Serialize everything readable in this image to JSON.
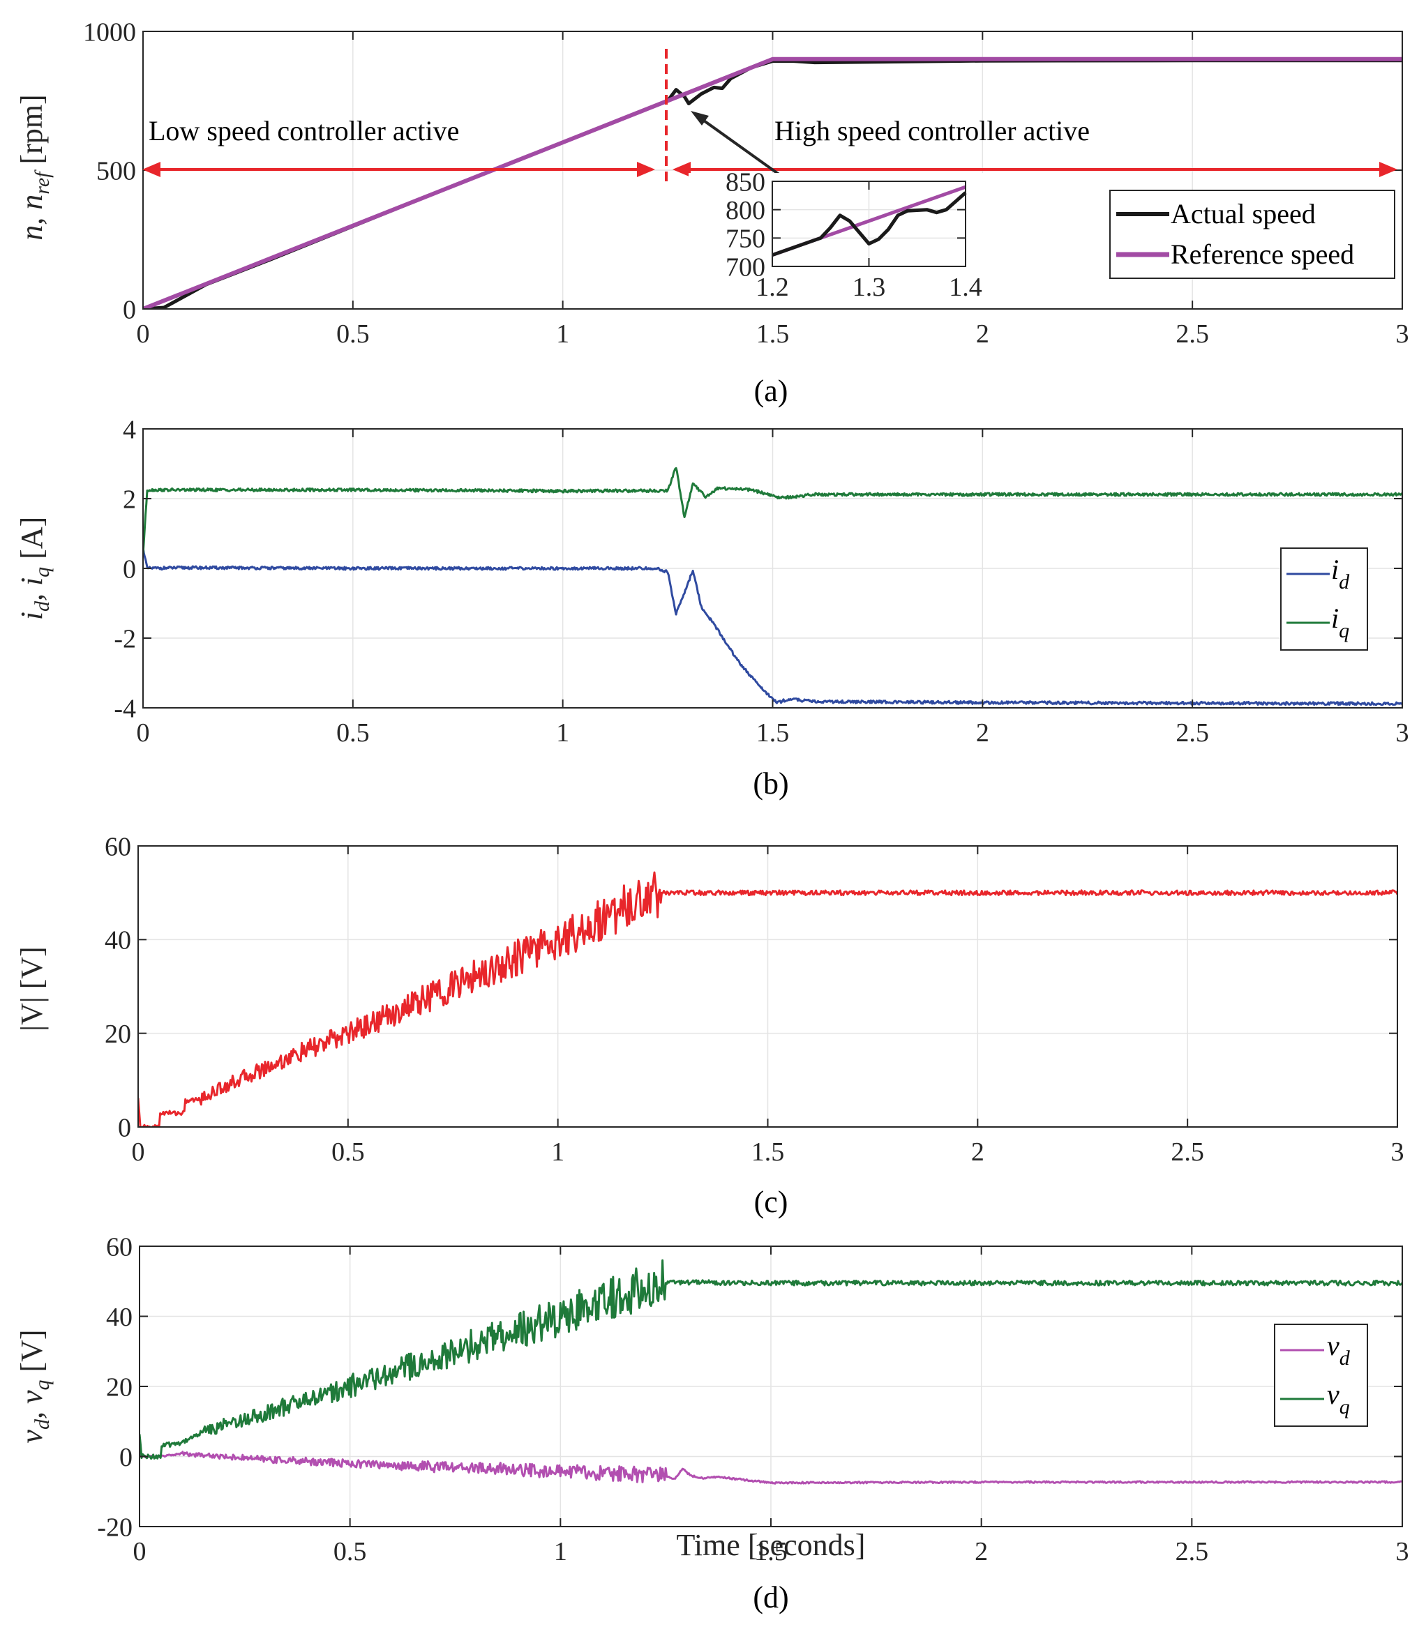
{
  "chart_data": [
    {
      "type": "line",
      "panel": "a",
      "caption": "(a)",
      "ylabel": "n, n_ref [rpm]",
      "ylabel_text": "n, n",
      "ylabel_sub": "ref",
      "ylabel_unit": " [rpm]",
      "xlim": [
        0,
        3
      ],
      "ylim": [
        0,
        1000
      ],
      "xticks": [
        "0",
        "0.5",
        "1",
        "1.5",
        "2",
        "2.5",
        "3"
      ],
      "yticks": [
        "0",
        "500",
        "1000"
      ],
      "grid": true,
      "legend_position": "right-middle",
      "series": [
        {
          "name": "Actual speed",
          "color": "#1a1a1a",
          "points": [
            [
              0,
              0
            ],
            [
              0.05,
              5
            ],
            [
              0.15,
              88
            ],
            [
              0.3,
              176
            ],
            [
              0.5,
              298
            ],
            [
              0.7,
              420
            ],
            [
              0.9,
              540
            ],
            [
              1.1,
              660
            ],
            [
              1.25,
              750
            ],
            [
              1.27,
              790
            ],
            [
              1.29,
              765
            ],
            [
              1.3,
              740
            ],
            [
              1.33,
              775
            ],
            [
              1.36,
              798
            ],
            [
              1.38,
              795
            ],
            [
              1.4,
              830
            ],
            [
              1.45,
              870
            ],
            [
              1.5,
              893
            ],
            [
              1.55,
              893
            ],
            [
              1.6,
              888
            ],
            [
              2.0,
              894
            ],
            [
              2.5,
              895
            ],
            [
              3.0,
              895
            ]
          ]
        },
        {
          "name": "Reference speed",
          "color": "#a24ba4",
          "points": [
            [
              0,
              0
            ],
            [
              1.5,
              900
            ],
            [
              3.0,
              900
            ]
          ]
        }
      ],
      "annotations": {
        "switch_time": 1.25,
        "low_label": "Low speed controller active",
        "high_label": "High speed controller active",
        "arrow_y": 500
      },
      "inset": {
        "xlim": [
          1.2,
          1.4
        ],
        "ylim": [
          700,
          850
        ],
        "xticks": [
          "1.2",
          "1.3",
          "1.4"
        ],
        "yticks": [
          "700",
          "750",
          "800",
          "850"
        ],
        "actual": [
          [
            1.2,
            720
          ],
          [
            1.25,
            750
          ],
          [
            1.26,
            768
          ],
          [
            1.27,
            790
          ],
          [
            1.28,
            780
          ],
          [
            1.29,
            760
          ],
          [
            1.3,
            740
          ],
          [
            1.31,
            748
          ],
          [
            1.32,
            765
          ],
          [
            1.33,
            790
          ],
          [
            1.34,
            798
          ],
          [
            1.36,
            800
          ],
          [
            1.37,
            795
          ],
          [
            1.38,
            800
          ],
          [
            1.39,
            815
          ],
          [
            1.4,
            830
          ]
        ],
        "reference": [
          [
            1.2,
            720
          ],
          [
            1.4,
            840
          ]
        ]
      }
    },
    {
      "type": "line",
      "panel": "b",
      "caption": "(b)",
      "ylabel": "i_d, i_q [A]",
      "ylabel_text": "i",
      "ylabel_sub1": "d",
      "ylabel_sep": ", i",
      "ylabel_sub2": "q",
      "ylabel_unit": " [A]",
      "xlim": [
        0,
        3
      ],
      "ylim": [
        -4,
        4
      ],
      "xticks": [
        "0",
        "0.5",
        "1",
        "1.5",
        "2",
        "2.5",
        "3"
      ],
      "yticks": [
        "-4",
        "-2",
        "0",
        "2",
        "4"
      ],
      "grid": true,
      "legend_position": "right-middle",
      "series": [
        {
          "name": "i_d",
          "label_main": "i",
          "label_sub": "d",
          "color": "#2f4aa0",
          "points": [
            [
              0,
              0.6
            ],
            [
              0.01,
              0
            ],
            [
              0.1,
              0.02
            ],
            [
              0.5,
              0
            ],
            [
              1.0,
              0
            ],
            [
              1.22,
              0
            ],
            [
              1.25,
              -0.1
            ],
            [
              1.27,
              -1.3
            ],
            [
              1.29,
              -0.7
            ],
            [
              1.31,
              -0.05
            ],
            [
              1.33,
              -1.1
            ],
            [
              1.36,
              -1.6
            ],
            [
              1.42,
              -2.7
            ],
            [
              1.47,
              -3.4
            ],
            [
              1.51,
              -3.85
            ],
            [
              1.54,
              -3.75
            ],
            [
              1.6,
              -3.82
            ],
            [
              2.0,
              -3.85
            ],
            [
              3.0,
              -3.88
            ]
          ]
        },
        {
          "name": "i_q",
          "label_main": "i",
          "label_sub": "q",
          "color": "#1f7a3a",
          "points": [
            [
              0,
              0.4
            ],
            [
              0.01,
              2.25
            ],
            [
              0.5,
              2.25
            ],
            [
              1.0,
              2.22
            ],
            [
              1.25,
              2.23
            ],
            [
              1.27,
              2.9
            ],
            [
              1.29,
              1.45
            ],
            [
              1.31,
              2.45
            ],
            [
              1.34,
              2.05
            ],
            [
              1.37,
              2.3
            ],
            [
              1.45,
              2.25
            ],
            [
              1.52,
              2.02
            ],
            [
              1.6,
              2.12
            ],
            [
              2.0,
              2.12
            ],
            [
              3.0,
              2.12
            ]
          ]
        }
      ]
    },
    {
      "type": "line",
      "panel": "c",
      "caption": "(c)",
      "ylabel": "|V| [V]",
      "xlim": [
        0,
        3
      ],
      "ylim": [
        0,
        60
      ],
      "xticks": [
        "0",
        "0.5",
        "1",
        "1.5",
        "2",
        "2.5",
        "3"
      ],
      "yticks": [
        "0",
        "20",
        "40",
        "60"
      ],
      "grid": true,
      "series": [
        {
          "name": "|V|",
          "color": "#e8262b",
          "points": [
            [
              0,
              6
            ],
            [
              0.005,
              0
            ],
            [
              0.05,
              0
            ],
            [
              0.052,
              3
            ],
            [
              0.11,
              3
            ],
            [
              0.112,
              5.5
            ],
            [
              0.15,
              6
            ],
            [
              0.2,
              8.5
            ],
            [
              0.3,
              12.5
            ],
            [
              0.5,
              20
            ],
            [
              0.75,
              30
            ],
            [
              1.0,
              40
            ],
            [
              1.1,
              44
            ],
            [
              1.2,
              49
            ],
            [
              1.25,
              50
            ],
            [
              3.0,
              50
            ]
          ]
        }
      ]
    },
    {
      "type": "line",
      "panel": "d",
      "caption": "(d)",
      "xlabel": "Time [seconds]",
      "ylabel": "v_d, v_q [V]",
      "ylabel_text": "v",
      "ylabel_sub1": "d",
      "ylabel_sep": ", v",
      "ylabel_sub2": "q",
      "ylabel_unit": " [V]",
      "xlim": [
        0,
        3
      ],
      "ylim": [
        -20,
        60
      ],
      "xticks": [
        "0",
        "0.5",
        "1",
        "1.5",
        "2",
        "2.5",
        "3"
      ],
      "yticks": [
        "-20",
        "0",
        "20",
        "40",
        "60"
      ],
      "grid": true,
      "legend_position": "right-middle",
      "series": [
        {
          "name": "v_d",
          "label_main": "v",
          "label_sub": "d",
          "color": "#b24fb0",
          "points": [
            [
              0,
              0
            ],
            [
              0.05,
              0
            ],
            [
              0.1,
              0.8
            ],
            [
              0.3,
              -0.8
            ],
            [
              0.6,
              -2.5
            ],
            [
              1.0,
              -4.2
            ],
            [
              1.25,
              -5.5
            ],
            [
              1.27,
              -6.5
            ],
            [
              1.29,
              -3.5
            ],
            [
              1.31,
              -5.5
            ],
            [
              1.34,
              -6.2
            ],
            [
              1.37,
              -5.8
            ],
            [
              1.5,
              -7.5
            ],
            [
              2.0,
              -7.3
            ],
            [
              3.0,
              -7.3
            ]
          ]
        },
        {
          "name": "v_q",
          "label_main": "v",
          "label_sub": "q",
          "color": "#1f7a3a",
          "points": [
            [
              0,
              6
            ],
            [
              0.005,
              0
            ],
            [
              0.05,
              0
            ],
            [
              0.052,
              3
            ],
            [
              0.1,
              4
            ],
            [
              0.15,
              7
            ],
            [
              0.2,
              9
            ],
            [
              0.3,
              12.5
            ],
            [
              0.5,
              20
            ],
            [
              0.75,
              30
            ],
            [
              1.0,
              40
            ],
            [
              1.1,
              44
            ],
            [
              1.2,
              48.5
            ],
            [
              1.25,
              49.7
            ],
            [
              1.5,
              49.5
            ],
            [
              3.0,
              49.5
            ]
          ]
        }
      ]
    }
  ]
}
